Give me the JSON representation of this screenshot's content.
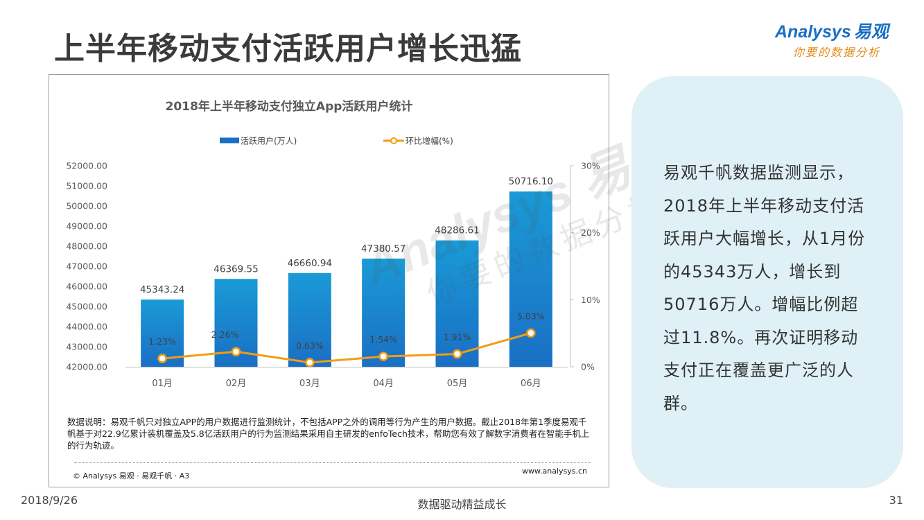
{
  "page": {
    "title": "上半年移动支付活跃用户增长迅猛",
    "logo": {
      "brand": "Analysys",
      "brand_cn": "易观",
      "slogan": "你要的数据分析"
    },
    "chart_note": "数据说明：易观千帆只对独立APP的用户数据进行监测统计，不包括APP之外的调用等行为产生的用户数据。截止2018年第1季度易观千帆基于对22.9亿累计装机覆盖及5.8亿活跃用户的行为监测结果采用自主研发的enfoTech技术，帮助您有效了解数字消费者在智能手机上的行为轨迹。",
    "copyright": "© Analysys 易观 · 易观千帆 · A3",
    "website": "www.analysys.cn",
    "summary": "易观千帆数据监测显示，2018年上半年移动支付活跃用户大幅增长，从1月份的45343万人，增长到50716万人。增幅比例超过11.8%。再次证明移动支付正在覆盖更广泛的人群。",
    "footer": {
      "date": "2018/9/26",
      "center": "数据驱动精益成长",
      "page_number": "31"
    }
  },
  "colors": {
    "bar_top": "#1a9ad6",
    "bar_bottom": "#1a6fc4",
    "line": "#f39c12",
    "sidebar_bg": "#dff0f6"
  },
  "chart_data": {
    "type": "bar",
    "title": "2018年上半年移动支付独立App活跃用户统计",
    "categories": [
      "01月",
      "02月",
      "03月",
      "04月",
      "05月",
      "06月"
    ],
    "series": [
      {
        "name": "活跃用户(万人)",
        "type": "bar",
        "axis": "left",
        "values": [
          45343.24,
          46369.55,
          46660.94,
          47380.57,
          48286.61,
          50716.1
        ],
        "labels": [
          "45343.24",
          "46369.55",
          "46660.94",
          "47380.57",
          "48286.61",
          "50716.10"
        ]
      },
      {
        "name": "环比增幅(%)",
        "type": "line",
        "axis": "right",
        "values": [
          1.23,
          2.26,
          0.63,
          1.54,
          1.91,
          5.03
        ],
        "labels": [
          "1.23%",
          "2.26%",
          "0.63%",
          "1.54%",
          "1.91%",
          "5.03%"
        ]
      }
    ],
    "y_left": {
      "min": 42000,
      "max": 52000,
      "ticks": [
        "42000.00",
        "43000.00",
        "44000.00",
        "45000.00",
        "46000.00",
        "47000.00",
        "48000.00",
        "49000.00",
        "50000.00",
        "51000.00",
        "52000.00"
      ]
    },
    "y_right": {
      "min": 0,
      "max": 30,
      "ticks": [
        "0%",
        "10%",
        "20%",
        "30%"
      ]
    },
    "legend": "top",
    "grid": false
  }
}
